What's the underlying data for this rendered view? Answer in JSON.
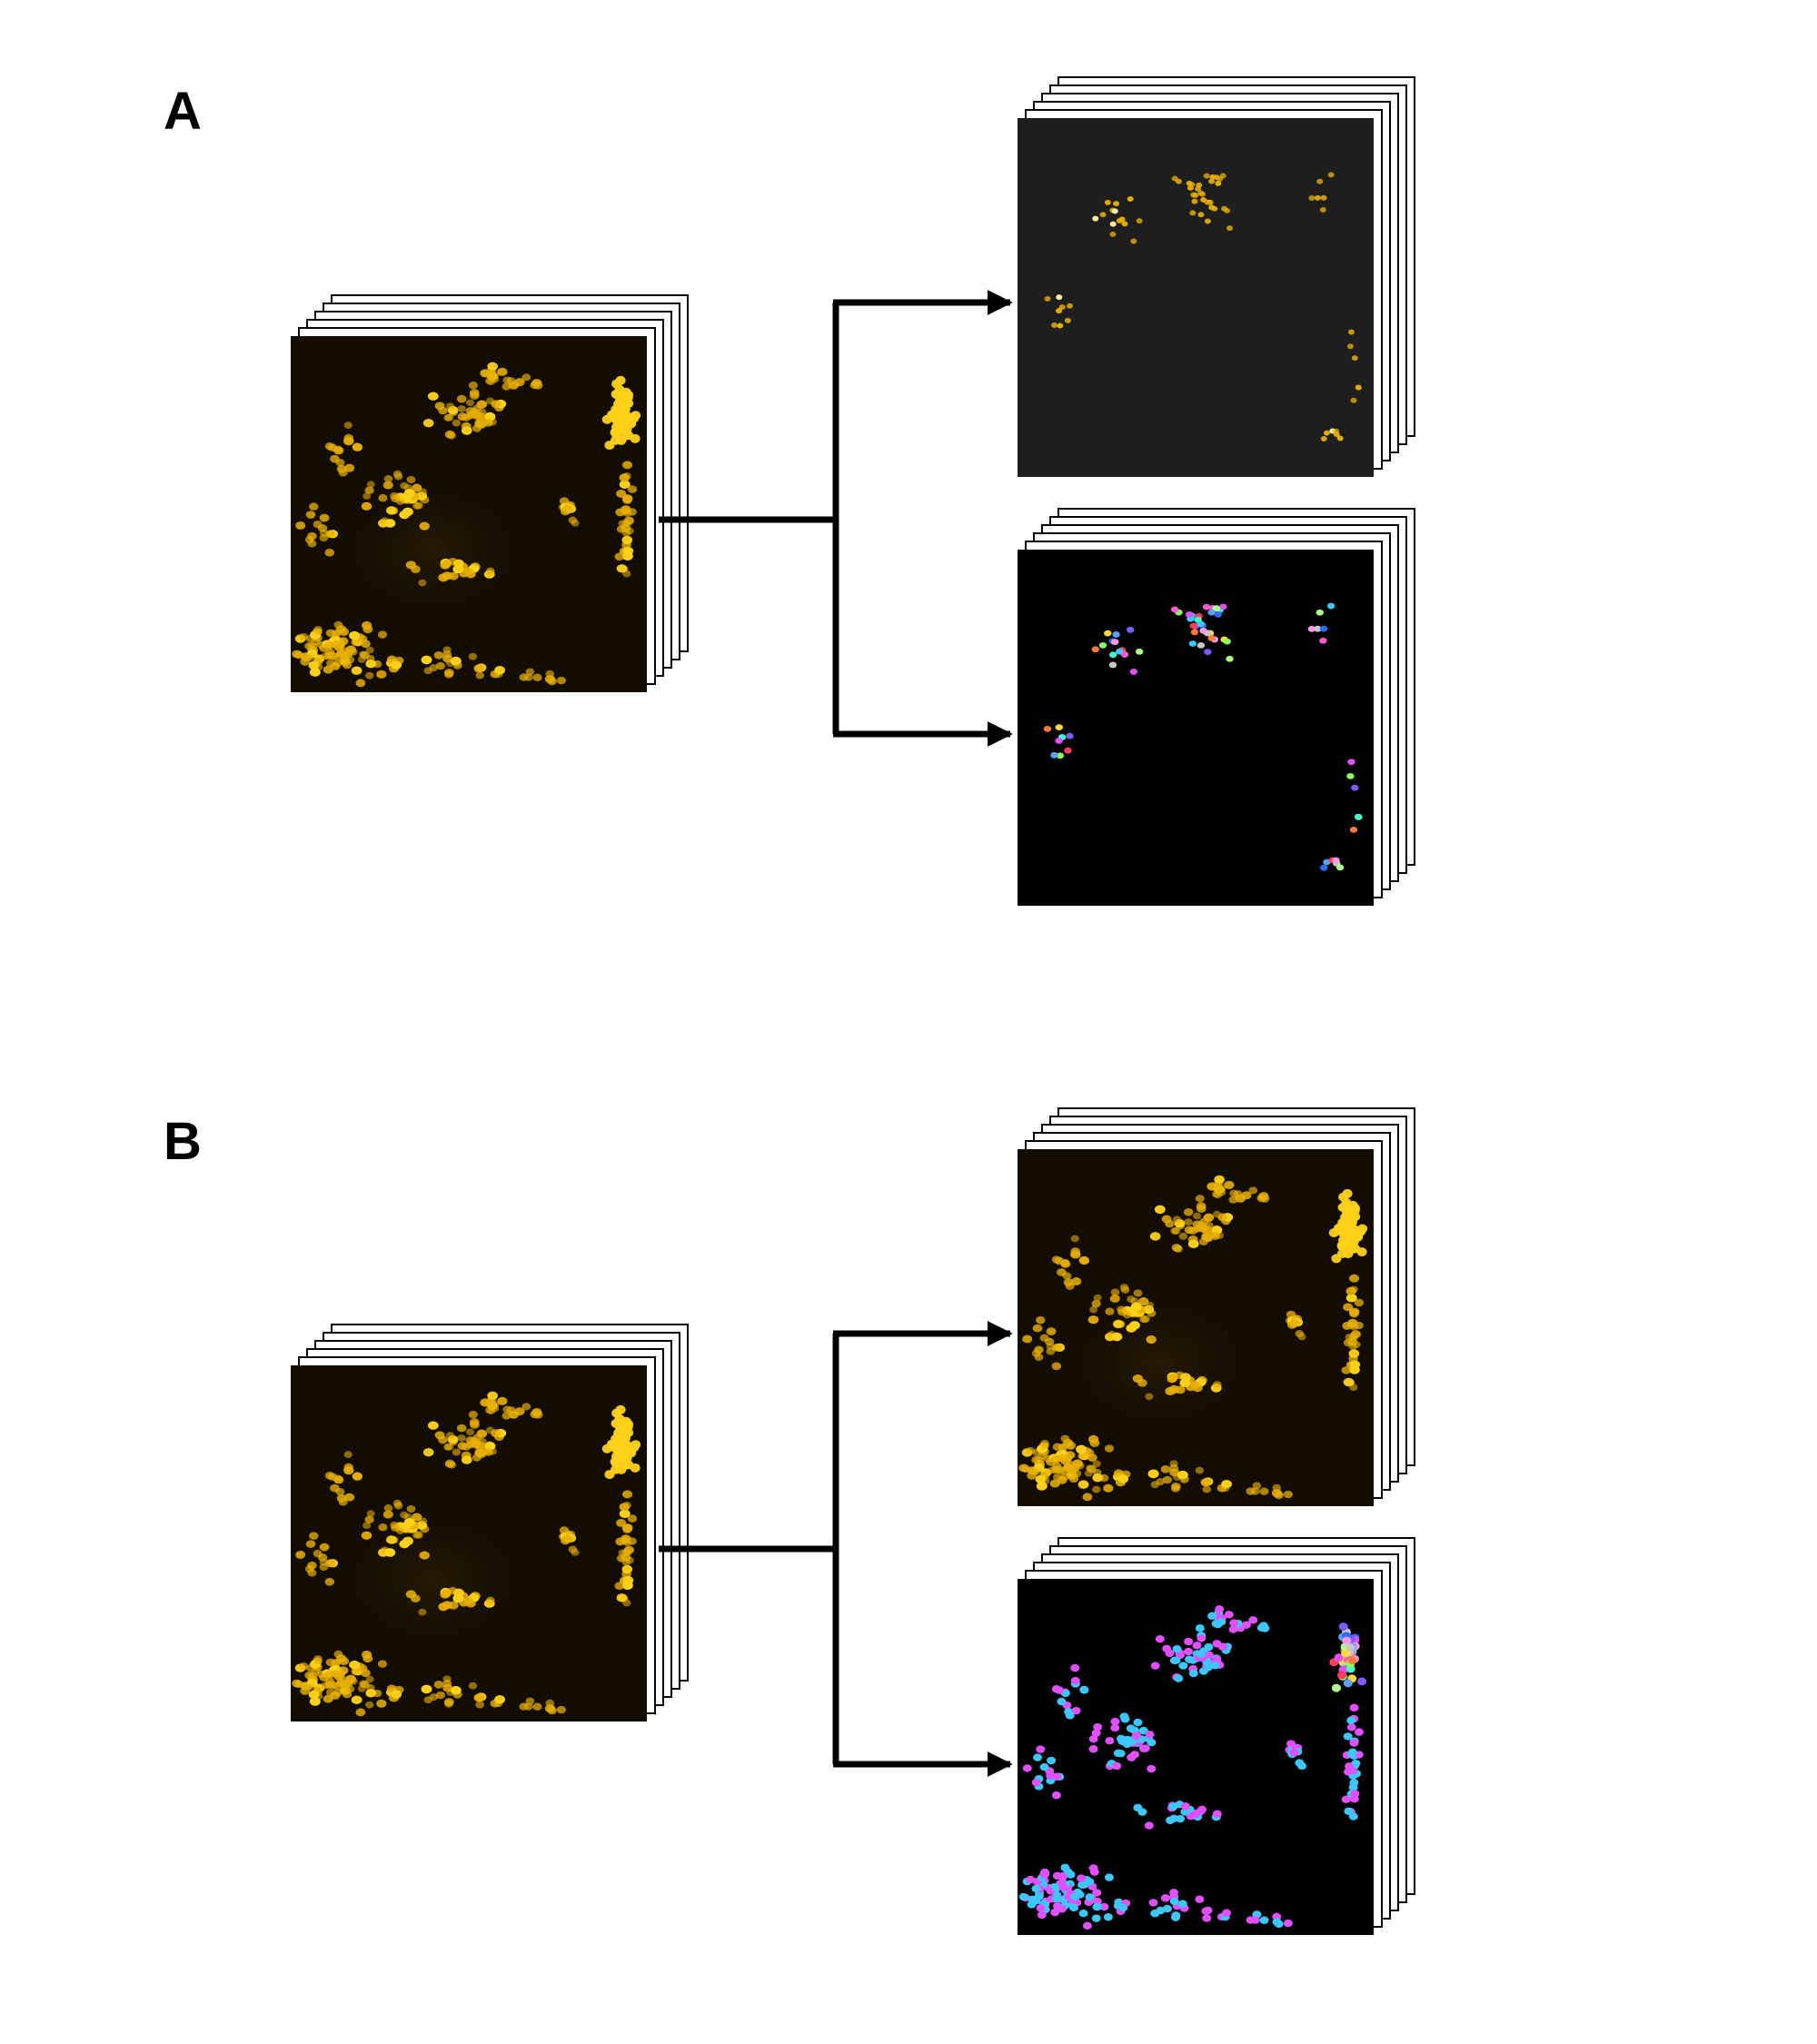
{
  "panels": [
    {
      "label": "A",
      "input_stack": {
        "image": "fluorescent-nuclei-microscopy"
      },
      "outputs": [
        {
          "image": "sparse-fluorescent-nuclei-gray-background"
        },
        {
          "image": "sparse-colored-segmentation-mask"
        }
      ]
    },
    {
      "label": "B",
      "input_stack": {
        "image": "fluorescent-nuclei-microscopy"
      },
      "outputs": [
        {
          "image": "fluorescent-nuclei-microscopy"
        },
        {
          "image": "dense-colored-segmentation-mask"
        }
      ]
    }
  ],
  "colors": {
    "nuclei": "#e8b000",
    "nuclei_bright": "#ffd21a",
    "dark_background": "#120c02",
    "gray_background": "#1e1e1e",
    "mask_background": "#000000",
    "connector": "#000000"
  }
}
